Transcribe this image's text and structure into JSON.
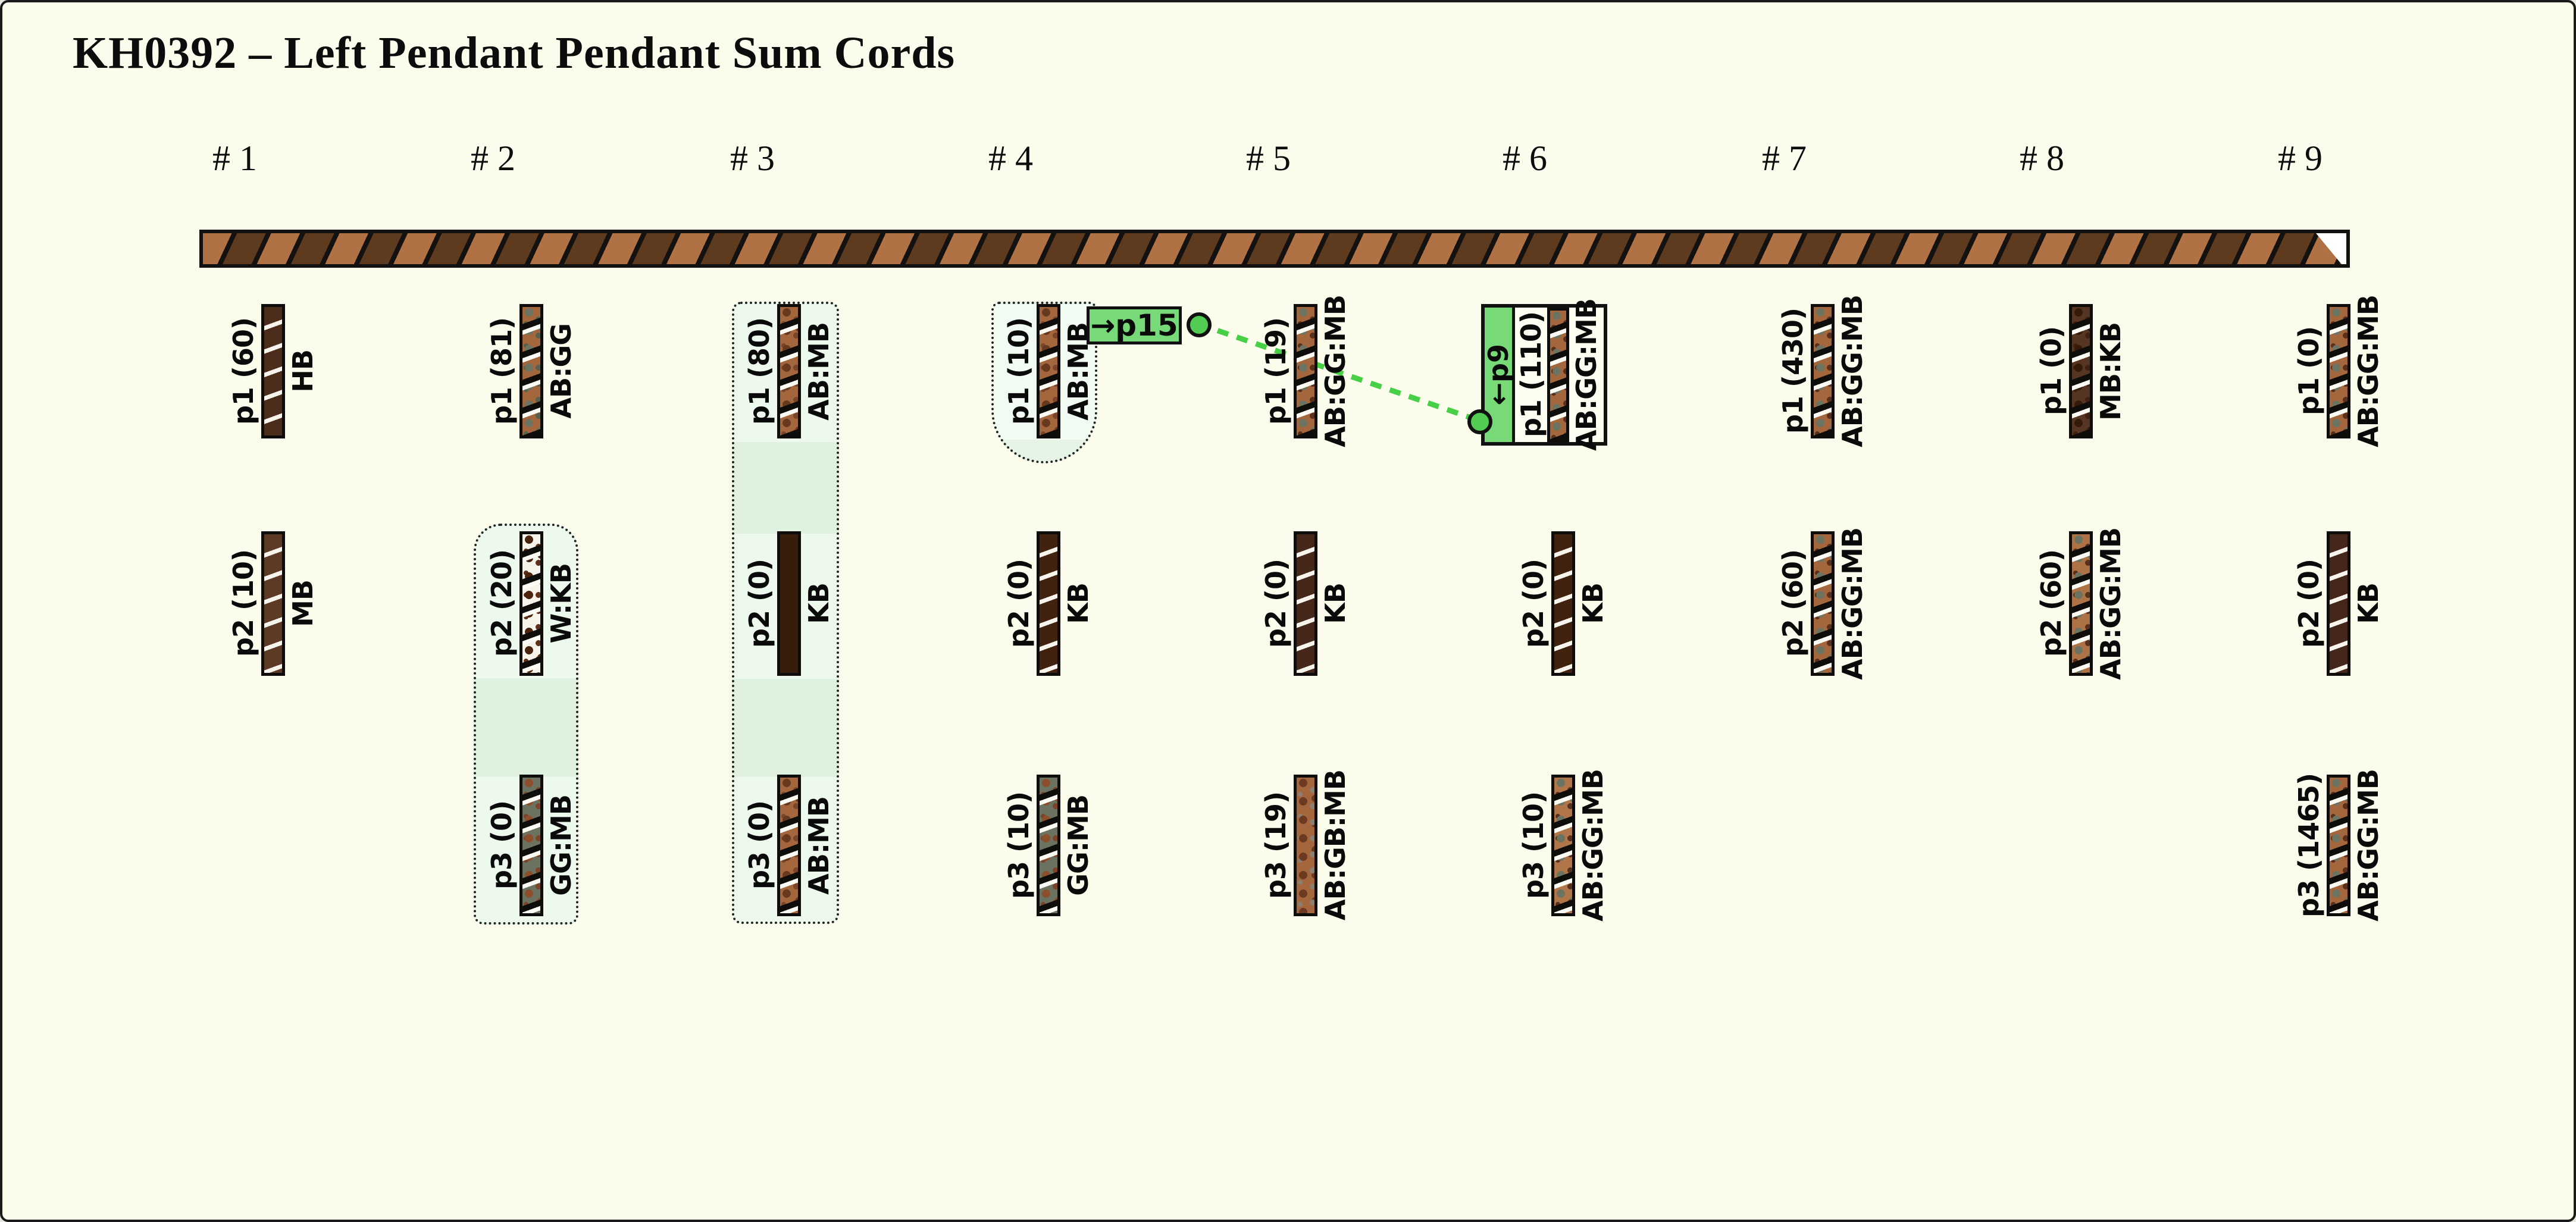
{
  "title": "KH0392 – Left Pendant Pendant Sum Cords",
  "accent": {
    "green_box": "#77d977",
    "green_line": "#46d046",
    "highlight_light": "#ecf9ec",
    "highlight_dark": "#dff2df",
    "cord_light_brown": "#b07145",
    "cord_dark_brown": "#5e3a1f"
  },
  "links": {
    "p15": {
      "label": "→p15"
    },
    "p9": {
      "label": "←p9"
    }
  },
  "columns": [
    {
      "header": "# 1",
      "pendants": [
        {
          "label": "p1 (60)",
          "code": "HB",
          "tex": "ws",
          "base": "#4c2d1b"
        },
        {
          "label": "p2 (10)",
          "code": "MB",
          "tex": "ws",
          "base": "#5d3a26"
        }
      ]
    },
    {
      "header": "# 2",
      "pendants": [
        {
          "label": "p1 (81)",
          "code": "AB:GG",
          "tex": "bw",
          "base": "#a4663c",
          "s1": "#6d7361",
          "s2": "#57604e"
        },
        {
          "label": "p2 (20)",
          "code": "W:KB",
          "tex": "bw",
          "base": "#f6f3ea",
          "s1": "#4b2410",
          "s2": "#60301a"
        },
        {
          "label": "p3 (0)",
          "code": "GG:MB",
          "tex": "bw",
          "base": "#6c7260",
          "s1": "#8c4e2b",
          "s2": "#7c4326"
        }
      ]
    },
    {
      "header": "# 3",
      "pendants": [
        {
          "label": "p1 (80)",
          "code": "AB:MB",
          "tex": "bw",
          "base": "#a4663c",
          "s1": "#67391e",
          "s2": "#7a452a"
        },
        {
          "label": "p2 (0)",
          "code": "KB",
          "tex": "solid",
          "base": "#381d0d"
        },
        {
          "label": "p3 (0)",
          "code": "AB:MB",
          "tex": "bw",
          "base": "#a4663c",
          "s1": "#67391e",
          "s2": "#7a452a"
        }
      ]
    },
    {
      "header": "# 4",
      "pendants": [
        {
          "label": "p1 (10)",
          "code": "AB:MB",
          "tex": "bw",
          "base": "#a4663c",
          "s1": "#67391e",
          "s2": "#7a452a"
        },
        {
          "label": "p2 (0)",
          "code": "KB",
          "tex": "ws",
          "base": "#40220f"
        },
        {
          "label": "p3 (10)",
          "code": "GG:MB",
          "tex": "bw",
          "base": "#6c7260",
          "s1": "#8c4e2b",
          "s2": "#7c4326"
        }
      ]
    },
    {
      "header": "# 5",
      "pendants": [
        {
          "label": "p1 (19)",
          "code": "AB:GG:MB",
          "tex": "bw",
          "base": "#a4663c",
          "s1": "#6d7361",
          "s2": "#58301d"
        },
        {
          "label": "p2 (0)",
          "code": "KB",
          "tex": "ws",
          "base": "#46281a"
        },
        {
          "label": "p3 (19)",
          "code": "AB:GB:MB",
          "tex": "sp",
          "base": "#a4663c",
          "s1": "#6b3a20",
          "s2": "#8d7f70"
        }
      ]
    },
    {
      "header": "# 6",
      "pendants": [
        {
          "label": "p1 (110)",
          "code": "AB:GG:MB",
          "tex": "bw",
          "base": "#a4663c",
          "s1": "#6d7361",
          "s2": "#58301d"
        },
        {
          "label": "p2 (0)",
          "code": "KB",
          "tex": "ws",
          "base": "#40220f"
        },
        {
          "label": "p3 (10)",
          "code": "AB:GG:MB",
          "tex": "bw",
          "base": "#b0764a",
          "s1": "#6d7361",
          "s2": "#58301d"
        }
      ]
    },
    {
      "header": "# 7",
      "pendants": [
        {
          "label": "p1 (430)",
          "code": "AB:GG:MB",
          "tex": "bw",
          "base": "#a4663c",
          "s1": "#6d7361",
          "s2": "#58301d"
        },
        {
          "label": "p2 (60)",
          "code": "AB:GG:MB",
          "tex": "bw",
          "base": "#a4663c",
          "s1": "#6d7361",
          "s2": "#58301d"
        }
      ]
    },
    {
      "header": "# 8",
      "pendants": [
        {
          "label": "p1 (0)",
          "code": "MB:KB",
          "tex": "bw",
          "base": "#573523",
          "s1": "#331a0b",
          "s2": "#40200e"
        },
        {
          "label": "p2 (60)",
          "code": "AB:GG:MB",
          "tex": "bw",
          "base": "#ad7245",
          "s1": "#6d7361",
          "s2": "#58301d"
        }
      ]
    },
    {
      "header": "# 9",
      "pendants": [
        {
          "label": "p1 (0)",
          "code": "AB:GG:MB",
          "tex": "bw",
          "base": "#a4663c",
          "s1": "#6d7361",
          "s2": "#58301d"
        },
        {
          "label": "p2 (0)",
          "code": "KB",
          "tex": "ws",
          "base": "#44261a"
        },
        {
          "label": "p3 (1465)",
          "code": "AB:GG:MB",
          "tex": "bw",
          "base": "#a4663c",
          "s1": "#6d7361",
          "s2": "#58301d"
        }
      ]
    }
  ]
}
